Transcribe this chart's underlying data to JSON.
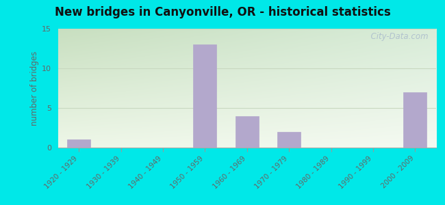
{
  "categories": [
    "1920 - 1929",
    "1930 - 1939",
    "1940 - 1949",
    "1950 - 1959",
    "1960 - 1969",
    "1970 - 1979",
    "1980 - 1989",
    "1990 - 1999",
    "2000 - 2009"
  ],
  "values": [
    1,
    0,
    0,
    13,
    4,
    2,
    0,
    0,
    7
  ],
  "bar_color": "#b3a8cc",
  "bar_edge_color": "#a098bb",
  "title": "New bridges in Canyonville, OR - historical statistics",
  "ylabel": "number of bridges",
  "ylim": [
    0,
    15
  ],
  "yticks": [
    0,
    5,
    10,
    15
  ],
  "bg_outer": "#00e8e8",
  "bg_corner_tl": "#c8dfc0",
  "bg_corner_tr": "#d8ecd8",
  "bg_corner_bl": "#eef7e8",
  "bg_corner_br": "#f5faf2",
  "grid_color": "#c8d8c0",
  "tick_color": "#666666",
  "title_color": "#111111",
  "watermark": "  City-Data.com",
  "watermark_color": "#aabbcc",
  "figsize": [
    6.5,
    3.0
  ],
  "dpi": 100
}
